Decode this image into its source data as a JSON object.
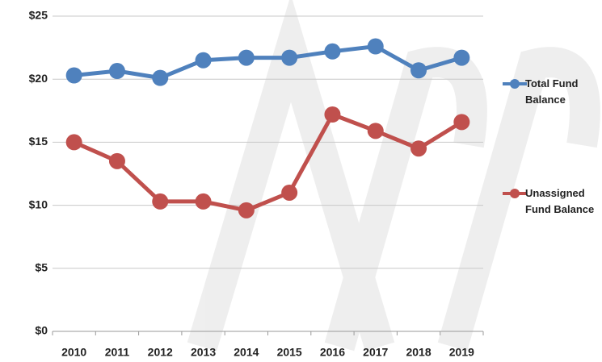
{
  "chart_data": {
    "type": "line",
    "categories": [
      "2010",
      "2011",
      "2012",
      "2013",
      "2014",
      "2015",
      "2016",
      "2017",
      "2018",
      "2019"
    ],
    "series": [
      {
        "name": "Total Fund Balance",
        "color": "#4f81bd",
        "values": [
          20.3,
          20.65,
          20.1,
          21.5,
          21.7,
          21.7,
          22.2,
          22.6,
          20.7,
          21.7
        ]
      },
      {
        "name": "Unassigned Fund Balance",
        "color": "#c0504d",
        "values": [
          15.0,
          13.5,
          10.3,
          10.3,
          9.6,
          11.0,
          17.2,
          15.9,
          14.5,
          16.6
        ]
      }
    ],
    "ylim": [
      0,
      25
    ],
    "yticks": [
      {
        "value": 0,
        "label": "$0"
      },
      {
        "value": 5,
        "label": "$5"
      },
      {
        "value": 10,
        "label": "$10"
      },
      {
        "value": 15,
        "label": "$15"
      },
      {
        "value": 20,
        "label": "$20"
      },
      {
        "value": 25,
        "label": "$25"
      }
    ],
    "grid": true,
    "legend": "right"
  }
}
